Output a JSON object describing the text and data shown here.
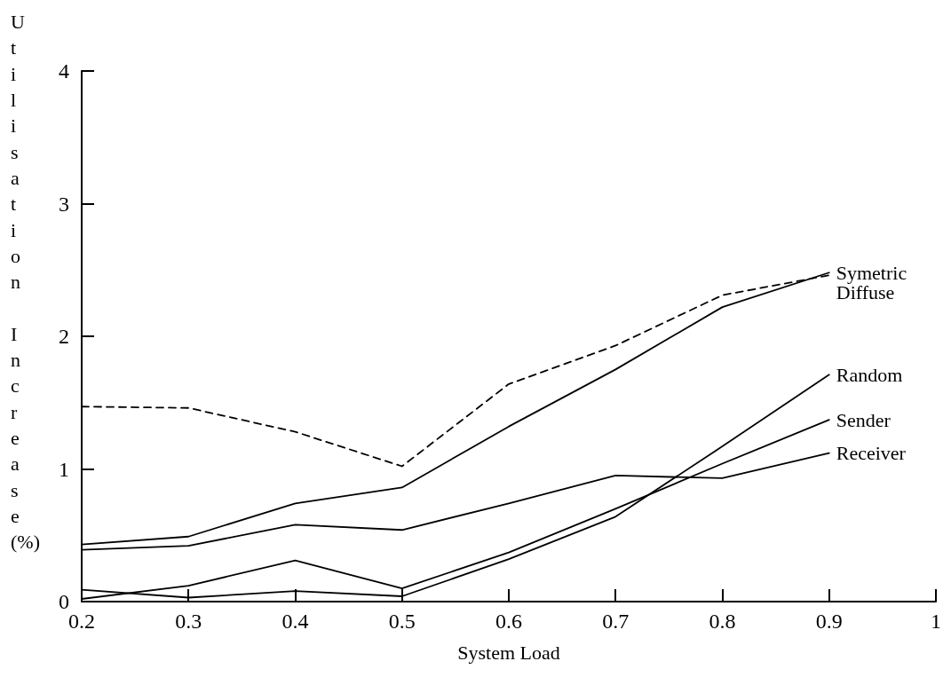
{
  "chart_data": {
    "type": "line",
    "xlabel": "System Load",
    "ylabel": "Utilisation Increase (%)",
    "x": [
      0.2,
      0.3,
      0.4,
      0.5,
      0.6,
      0.7,
      0.8,
      0.9
    ],
    "xlim": [
      0.2,
      1
    ],
    "xticks": [
      0.2,
      0.3,
      0.4,
      0.5,
      0.6,
      0.7,
      0.8,
      0.9,
      1
    ],
    "ylim": [
      0,
      4
    ],
    "yticks": [
      0,
      1,
      2,
      3,
      4
    ],
    "marker": "none",
    "series": [
      {
        "name": "Symetric",
        "color": "#000000",
        "line_style": "solid",
        "values": [
          0.43,
          0.49,
          0.74,
          0.86,
          1.32,
          1.75,
          2.22,
          2.48
        ]
      },
      {
        "name": "Diffuse",
        "color": "#000000",
        "line_style": "dashed",
        "values": [
          1.47,
          1.46,
          1.28,
          1.02,
          1.64,
          1.93,
          2.31,
          2.46
        ]
      },
      {
        "name": "Random",
        "color": "#000000",
        "line_style": "solid",
        "values": [
          0.09,
          0.03,
          0.08,
          0.04,
          0.32,
          0.64,
          1.17,
          1.71
        ]
      },
      {
        "name": "Sender",
        "color": "#000000",
        "line_style": "solid",
        "values": [
          0.02,
          0.12,
          0.31,
          0.1,
          0.37,
          0.7,
          1.04,
          1.37
        ]
      },
      {
        "name": "Receiver",
        "color": "#000000",
        "line_style": "solid",
        "values": [
          0.39,
          0.42,
          0.58,
          0.54,
          0.74,
          0.95,
          0.93,
          1.12
        ]
      }
    ]
  }
}
